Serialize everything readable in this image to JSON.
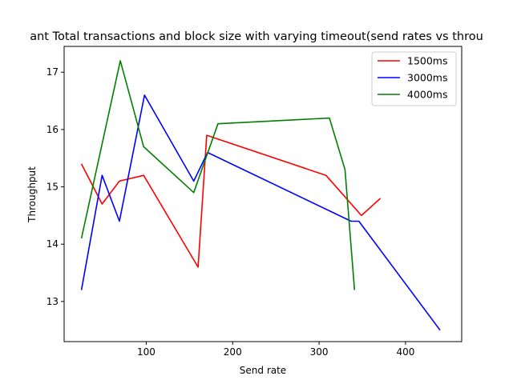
{
  "chart_data": {
    "type": "line",
    "title": "ant Total transactions and block size with varying timeout(send rates vs throu",
    "xlabel": "Send rate",
    "ylabel": "Throughput",
    "xlim": [
      5,
      465
    ],
    "ylim": [
      12.3,
      17.45
    ],
    "xticks": [
      100,
      200,
      300,
      400
    ],
    "yticks": [
      13,
      14,
      15,
      16,
      17
    ],
    "grid": false,
    "legend_position": "top-right",
    "series": [
      {
        "name": "1500ms",
        "color": "#ff0000",
        "points": [
          [
            25,
            15.4
          ],
          [
            49,
            14.7
          ],
          [
            69,
            15.1
          ],
          [
            97,
            15.2
          ],
          [
            160,
            13.6
          ],
          [
            170,
            15.9
          ],
          [
            308,
            15.2
          ],
          [
            349,
            14.5
          ],
          [
            371,
            14.8
          ]
        ]
      },
      {
        "name": "3000ms",
        "color": "#0000ff",
        "points": [
          [
            25,
            13.2
          ],
          [
            49,
            15.2
          ],
          [
            69,
            14.4
          ],
          [
            98,
            16.6
          ],
          [
            155,
            15.1
          ],
          [
            171,
            15.6
          ],
          [
            337,
            14.4
          ],
          [
            346,
            14.4
          ],
          [
            440,
            12.5
          ]
        ]
      },
      {
        "name": "4000ms",
        "color": "#008000",
        "points": [
          [
            25,
            14.1
          ],
          [
            70,
            17.2
          ],
          [
            97,
            15.7
          ],
          [
            155,
            14.9
          ],
          [
            183,
            16.1
          ],
          [
            312,
            16.2
          ],
          [
            330,
            15.3
          ],
          [
            341,
            13.2
          ]
        ]
      }
    ]
  }
}
